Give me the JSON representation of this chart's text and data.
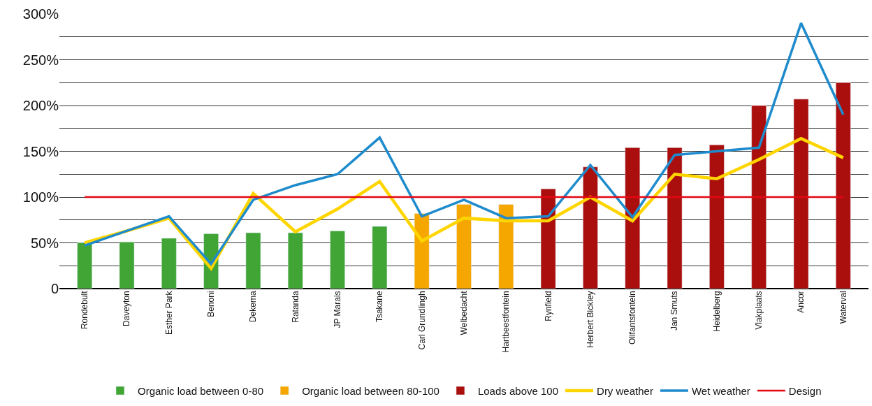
{
  "chart_data": {
    "type": "bar",
    "categories": [
      "Rondebult",
      "Daveyton",
      "Esther Park",
      "Benoni",
      "Dekema",
      "Ratanda",
      "JP Marais",
      "Tsakane",
      "Carl Grundlingh",
      "Welbedacht",
      "Hartbeestfontein",
      "Rynfield",
      "Herbert Bickley",
      "Olifantsfontein",
      "Jan Smuts",
      "Heidelberg",
      "Vlakplaats",
      "Ancor",
      "Waterval"
    ],
    "series": [
      {
        "name": "Organic load between 0-80",
        "color": "#41a535",
        "values": [
          50,
          51,
          55,
          60,
          61,
          61,
          63,
          68,
          null,
          null,
          null,
          null,
          null,
          null,
          null,
          null,
          null,
          null,
          null
        ]
      },
      {
        "name": "Organic load between 80-100",
        "color": "#f5a700",
        "values": [
          null,
          null,
          null,
          null,
          null,
          null,
          null,
          null,
          82,
          92,
          92,
          null,
          null,
          null,
          null,
          null,
          null,
          null,
          null
        ]
      },
      {
        "name": "Loads above 100",
        "color": "#ab0f0d",
        "values": [
          null,
          null,
          null,
          null,
          null,
          null,
          null,
          null,
          null,
          null,
          null,
          109,
          133,
          154,
          154,
          157,
          200,
          207,
          225
        ]
      },
      {
        "name": "Dry weather",
        "type": "line",
        "color": "#ffd500",
        "values": [
          50,
          63,
          77,
          22,
          104,
          62,
          87,
          117,
          52,
          77,
          74,
          74,
          100,
          74,
          125,
          120,
          141,
          164,
          143
        ]
      },
      {
        "name": "Wet weather",
        "type": "line",
        "color": "#1e8bcd",
        "values": [
          47,
          63,
          79,
          27,
          97,
          113,
          125,
          165,
          79,
          97,
          77,
          79,
          135,
          78,
          146,
          150,
          154,
          290,
          190
        ]
      }
    ],
    "ref_lines": [
      {
        "axis": "y",
        "value": 100,
        "label": "Design",
        "color": "#e30613"
      }
    ],
    "ylim": [
      0,
      300
    ],
    "yticks": [
      0,
      {
        "value": 25,
        "label": null
      },
      {
        "value": 50,
        "label": "50%"
      },
      {
        "value": 75,
        "label": null
      },
      {
        "value": 100,
        "label": "100%"
      },
      {
        "value": 125,
        "label": null
      },
      {
        "value": 150,
        "label": "150%"
      },
      {
        "value": 175,
        "label": null
      },
      {
        "value": 200,
        "label": "200%"
      },
      {
        "value": 225,
        "label": null
      },
      {
        "value": 250,
        "label": "250%"
      },
      {
        "value": 275,
        "label": null
      },
      {
        "value": 300,
        "label": "300%"
      }
    ],
    "grid": "y",
    "legend": "bottom",
    "marker": "none"
  }
}
